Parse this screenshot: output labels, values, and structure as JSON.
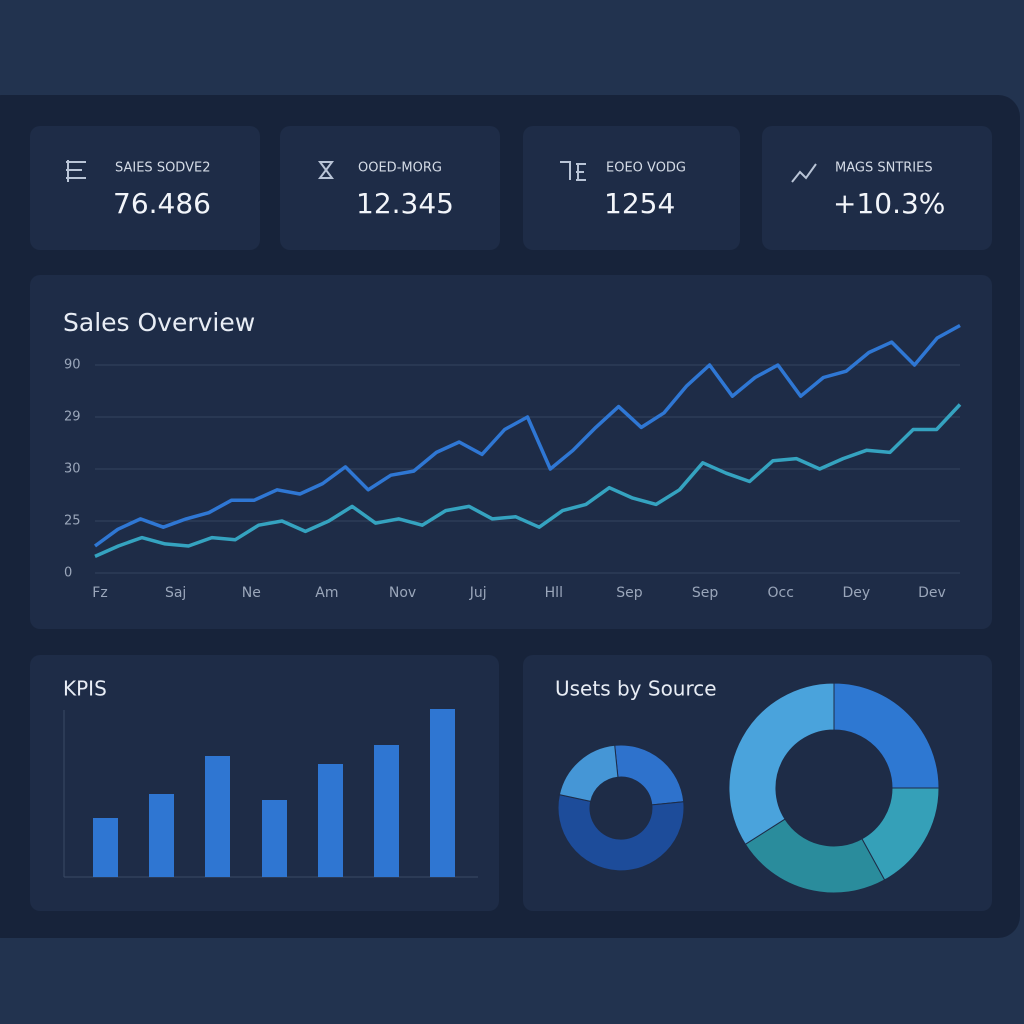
{
  "kpi_cards": [
    {
      "label": "SAIES SODVE2",
      "value": "76.486"
    },
    {
      "label": "OOED-MORG",
      "value": "12.345"
    },
    {
      "label": "EOEO VODG",
      "value": "1254"
    },
    {
      "label": "MAGS SNTRIES",
      "value": "+10.3%"
    }
  ],
  "sales_overview": {
    "title": "Sales Overview",
    "y_labels": [
      "90",
      "29",
      "30",
      "25",
      "0"
    ],
    "x_labels": [
      "Fz",
      "Saj",
      "Ne",
      "Am",
      "Nov",
      "Juj",
      "Hll",
      "Sep",
      "Sep",
      "Occ",
      "Dey",
      "Dev"
    ],
    "ylim": [
      0,
      120
    ],
    "series": [
      {
        "color": "#2f77d4",
        "values": [
          13,
          21,
          26,
          22,
          26,
          29,
          35,
          35,
          40,
          38,
          43,
          51,
          40,
          47,
          49,
          58,
          63,
          57,
          69,
          75,
          50,
          59,
          70,
          80,
          70,
          77,
          90,
          100,
          85,
          94,
          100,
          85,
          94,
          97,
          106,
          111,
          100,
          113,
          119
        ]
      },
      {
        "color": "#35a3c0",
        "values": [
          8,
          13,
          17,
          14,
          13,
          17,
          16,
          23,
          25,
          20,
          25,
          32,
          24,
          26,
          23,
          30,
          32,
          26,
          27,
          22,
          30,
          33,
          41,
          36,
          33,
          40,
          53,
          48,
          44,
          54,
          55,
          50,
          55,
          59,
          58,
          69,
          69,
          81
        ]
      }
    ]
  },
  "kpis_chart": {
    "title": "KPIS",
    "color": "#2f76d2",
    "ylim": [
      0,
      180
    ],
    "values": [
      59,
      83,
      121,
      77,
      113,
      132,
      168
    ]
  },
  "users_by_source": {
    "title": "Usets by Source",
    "small_donut": {
      "values": [
        25,
        55,
        20
      ],
      "colors": [
        "#2e72cc",
        "#1d4c9a",
        "#4596d6"
      ]
    },
    "large_donut": {
      "values": [
        25,
        17,
        24,
        34
      ],
      "colors": [
        "#2e78d2",
        "#35a0b8",
        "#2a8c9c",
        "#4aa3dc"
      ]
    }
  }
}
